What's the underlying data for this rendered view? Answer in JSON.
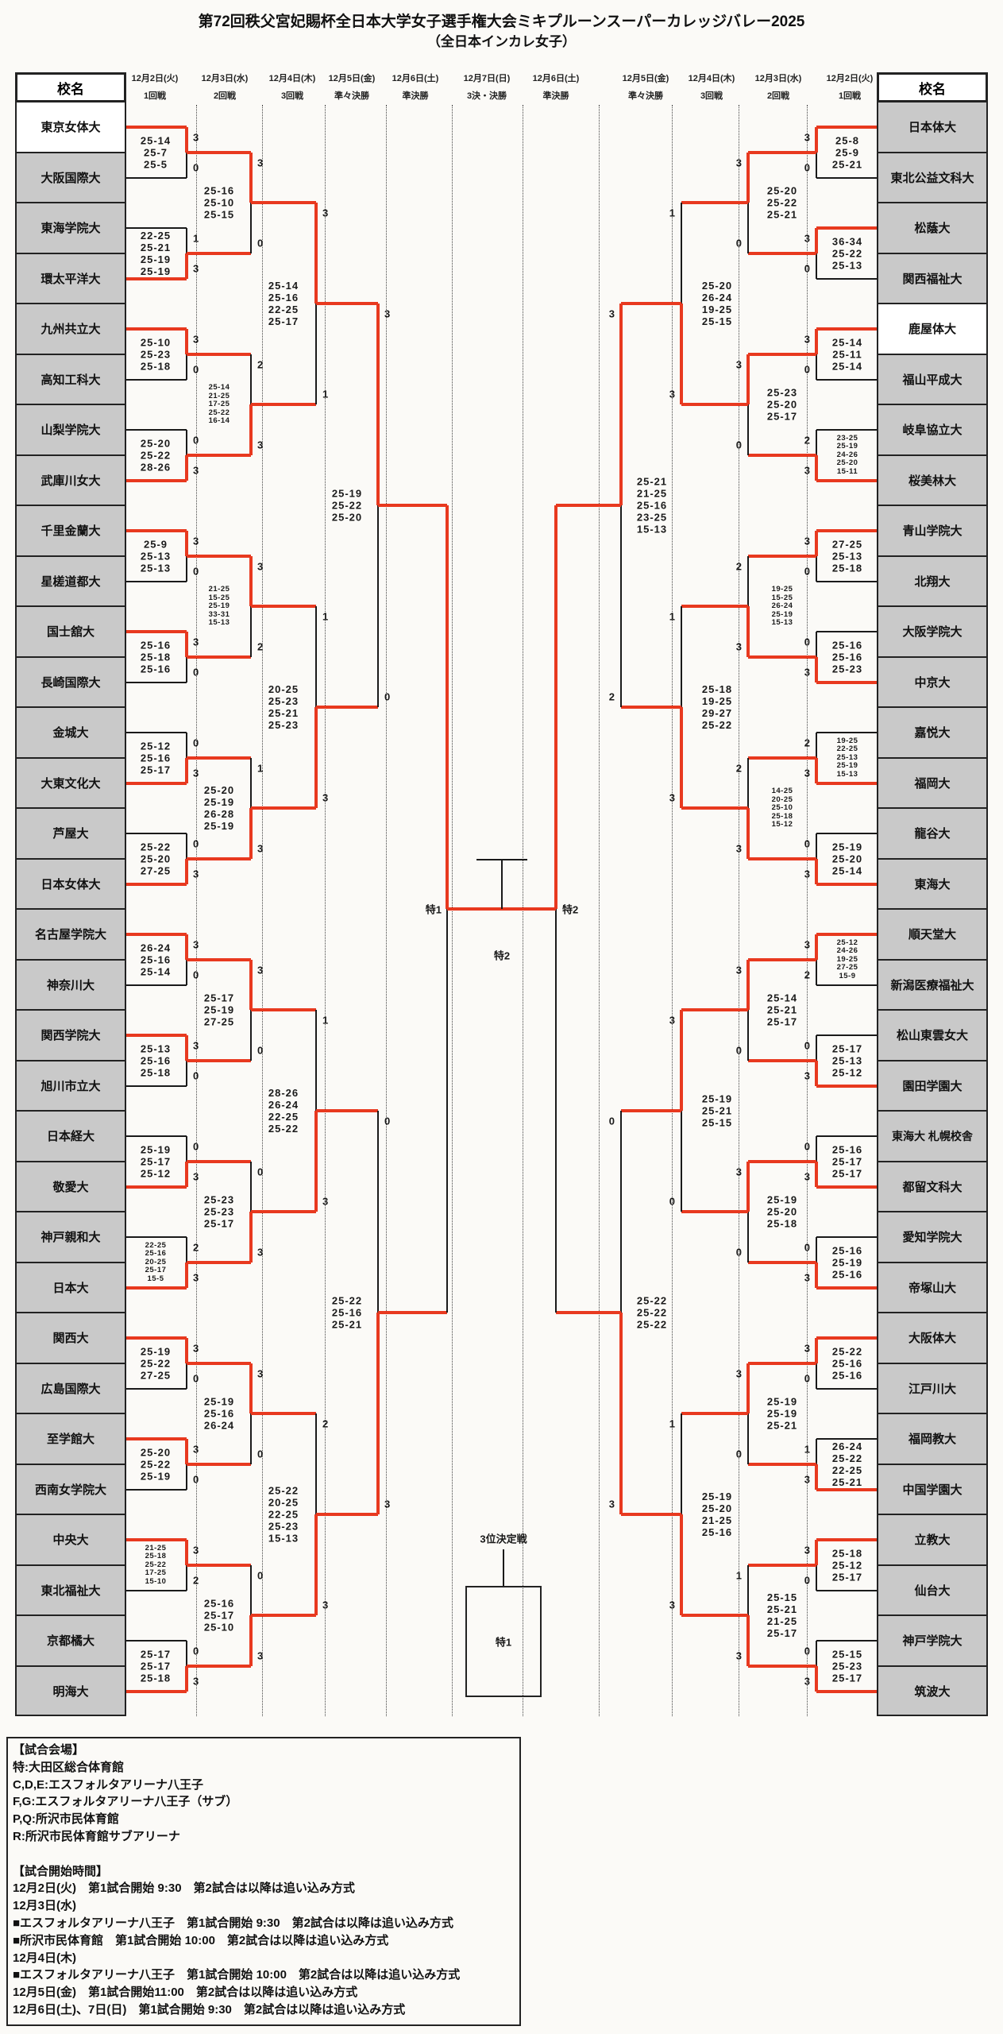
{
  "title": "第72回秩父宮妃賜杯全日本大学女子選手権大会ミキプルーンスーパーカレッジバレー2025",
  "subtitle": "（全日本インカレ女子）",
  "school_header": "校名",
  "columns": [
    {
      "date": "12月2日(火)",
      "round": "1回戦"
    },
    {
      "date": "12月3日(水)",
      "round": "2回戦"
    },
    {
      "date": "12月4日(木)",
      "round": "3回戦"
    },
    {
      "date": "12月5日(金)",
      "round": "準々決勝"
    },
    {
      "date": "12月6日(土)",
      "round": "準決勝"
    },
    {
      "date": "12月7日(日)",
      "round": "3決・決勝"
    },
    {
      "date": "12月6日(土)",
      "round": "準決勝"
    },
    {
      "date": "12月5日(金)",
      "round": "準々決勝"
    },
    {
      "date": "12月4日(木)",
      "round": "3回戦"
    },
    {
      "date": "12月3日(水)",
      "round": "2回戦"
    },
    {
      "date": "12月2日(火)",
      "round": "1回戦"
    }
  ],
  "left_teams": [
    {
      "name": "東京女体大",
      "highlight": true
    },
    {
      "name": "大阪国際大"
    },
    {
      "name": "東海学院大"
    },
    {
      "name": "環太平洋大"
    },
    {
      "name": "九州共立大"
    },
    {
      "name": "高知工科大"
    },
    {
      "name": "山梨学院大"
    },
    {
      "name": "武庫川女大"
    },
    {
      "name": "千里金蘭大"
    },
    {
      "name": "星槎道都大"
    },
    {
      "name": "国士舘大"
    },
    {
      "name": "長崎国際大"
    },
    {
      "name": "金城大"
    },
    {
      "name": "大東文化大"
    },
    {
      "name": "芦屋大"
    },
    {
      "name": "日本女体大"
    },
    {
      "name": "名古屋学院大"
    },
    {
      "name": "神奈川大"
    },
    {
      "name": "関西学院大"
    },
    {
      "name": "旭川市立大"
    },
    {
      "name": "日本経大"
    },
    {
      "name": "敬愛大"
    },
    {
      "name": "神戸親和大"
    },
    {
      "name": "日本大"
    },
    {
      "name": "関西大"
    },
    {
      "name": "広島国際大"
    },
    {
      "name": "至学館大"
    },
    {
      "name": "西南女学院大"
    },
    {
      "name": "中央大"
    },
    {
      "name": "東北福祉大"
    },
    {
      "name": "京都橘大"
    },
    {
      "name": "明海大"
    }
  ],
  "right_teams": [
    {
      "name": "日本体大"
    },
    {
      "name": "東北公益文科大"
    },
    {
      "name": "松蔭大"
    },
    {
      "name": "関西福祉大"
    },
    {
      "name": "鹿屋体大",
      "highlight": true
    },
    {
      "name": "福山平成大"
    },
    {
      "name": "岐阜協立大"
    },
    {
      "name": "桜美林大"
    },
    {
      "name": "青山学院大"
    },
    {
      "name": "北翔大"
    },
    {
      "name": "大阪学院大"
    },
    {
      "name": "中京大"
    },
    {
      "name": "嘉悦大"
    },
    {
      "name": "福岡大"
    },
    {
      "name": "龍谷大"
    },
    {
      "name": "東海大"
    },
    {
      "name": "順天堂大"
    },
    {
      "name": "新潟医療福祉大"
    },
    {
      "name": "松山東雲女大"
    },
    {
      "name": "園田学園大"
    },
    {
      "name": "東海大\n札幌校舎"
    },
    {
      "name": "都留文科大"
    },
    {
      "name": "愛知学院大"
    },
    {
      "name": "帝塚山大"
    },
    {
      "name": "大阪体大"
    },
    {
      "name": "江戸川大"
    },
    {
      "name": "福岡教大"
    },
    {
      "name": "中国学園大"
    },
    {
      "name": "立教大"
    },
    {
      "name": "仙台大"
    },
    {
      "name": "神戸学院大"
    },
    {
      "name": "筑波大"
    }
  ],
  "bracket": {
    "left": {
      "r1": [
        {
          "s": [
            "25-14",
            "25-7",
            "25-5"
          ],
          "n": [
            3,
            0
          ],
          "w": "t"
        },
        {
          "s": [
            "22-25",
            "25-21",
            "25-19",
            "25-19"
          ],
          "n": [
            1,
            3
          ],
          "w": "b"
        },
        {
          "s": [
            "25-10",
            "25-23",
            "25-18"
          ],
          "n": [
            3,
            0
          ],
          "w": "t"
        },
        {
          "s": [
            "25-20",
            "25-22",
            "28-26"
          ],
          "n": [
            0,
            3
          ],
          "w": "b"
        },
        {
          "s": [
            "25-9",
            "25-13",
            "25-13"
          ],
          "n": [
            3,
            0
          ],
          "w": "t"
        },
        {
          "s": [
            "25-16",
            "25-18",
            "25-16"
          ],
          "n": [
            3,
            0
          ],
          "w": "t"
        },
        {
          "s": [
            "25-12",
            "25-16",
            "25-17"
          ],
          "n": [
            0,
            3
          ],
          "w": "b"
        },
        {
          "s": [
            "25-22",
            "25-20",
            "27-25"
          ],
          "n": [
            0,
            3
          ],
          "w": "b"
        },
        {
          "s": [
            "26-24",
            "25-16",
            "25-14"
          ],
          "n": [
            3,
            0
          ],
          "w": "t"
        },
        {
          "s": [
            "25-13",
            "25-16",
            "25-18"
          ],
          "n": [
            3,
            0
          ],
          "w": "t"
        },
        {
          "s": [
            "25-19",
            "25-17",
            "25-12"
          ],
          "n": [
            0,
            3
          ],
          "w": "b"
        },
        {
          "s": [
            "22-25",
            "25-16",
            "20-25",
            "25-17",
            "15-5"
          ],
          "n": [
            2,
            3
          ],
          "w": "b",
          "small": true
        },
        {
          "s": [
            "25-19",
            "25-22",
            "27-25"
          ],
          "n": [
            3,
            0
          ],
          "w": "t"
        },
        {
          "s": [
            "25-20",
            "25-22",
            "25-19"
          ],
          "n": [
            3,
            0
          ],
          "w": "t"
        },
        {
          "s": [
            "21-25",
            "25-18",
            "25-22",
            "17-25",
            "15-10"
          ],
          "n": [
            3,
            2
          ],
          "w": "t",
          "small": true
        },
        {
          "s": [
            "25-17",
            "25-17",
            "25-18"
          ],
          "n": [
            0,
            3
          ],
          "w": "b"
        }
      ],
      "r2": [
        {
          "s": [
            "25-16",
            "25-10",
            "25-15"
          ],
          "n": [
            3,
            0
          ],
          "w": "t"
        },
        {
          "s": [
            "25-14",
            "21-25",
            "17-25",
            "25-22",
            "16-14"
          ],
          "n": [
            2,
            3
          ],
          "w": "b",
          "small": true
        },
        {
          "s": [
            "21-25",
            "15-25",
            "25-19",
            "33-31",
            "15-13"
          ],
          "n": [
            3,
            2
          ],
          "w": "t",
          "small": true
        },
        {
          "s": [
            "25-20",
            "25-19",
            "26-28",
            "25-19"
          ],
          "n": [
            1,
            3
          ],
          "w": "b"
        },
        {
          "s": [
            "25-17",
            "25-19",
            "27-25"
          ],
          "n": [
            3,
            0
          ],
          "w": "t"
        },
        {
          "s": [
            "25-23",
            "25-23",
            "25-17"
          ],
          "n": [
            0,
            3
          ],
          "w": "b"
        },
        {
          "s": [
            "25-19",
            "25-16",
            "26-24"
          ],
          "n": [
            3,
            0
          ],
          "w": "t"
        },
        {
          "s": [
            "25-16",
            "25-17",
            "25-10"
          ],
          "n": [
            0,
            3
          ],
          "w": "b"
        }
      ],
      "r3": [
        {
          "s": [
            "25-14",
            "25-16",
            "22-25",
            "25-17"
          ],
          "n": [
            3,
            1
          ],
          "w": "t"
        },
        {
          "s": [
            "20-25",
            "25-23",
            "25-21",
            "25-23"
          ],
          "n": [
            1,
            3
          ],
          "w": "b"
        },
        {
          "s": [
            "28-26",
            "26-24",
            "22-25",
            "25-22"
          ],
          "n": [
            1,
            3
          ],
          "w": "b"
        },
        {
          "s": [
            "25-22",
            "20-25",
            "22-25",
            "25-23",
            "15-13"
          ],
          "n": [
            2,
            3
          ],
          "w": "b"
        }
      ],
      "qf": [
        {
          "s": [
            "25-19",
            "25-22",
            "25-20"
          ],
          "n": [
            3,
            0
          ],
          "w": "t"
        },
        {
          "s": [
            "25-22",
            "25-16",
            "25-21"
          ],
          "n": [
            0,
            3
          ],
          "w": "b"
        }
      ],
      "sf": {
        "w": "t"
      }
    },
    "right": {
      "r1": [
        {
          "s": [
            "25-8",
            "25-9",
            "25-21"
          ],
          "n": [
            3,
            0
          ],
          "w": "t"
        },
        {
          "s": [
            "36-34",
            "25-22",
            "25-13"
          ],
          "n": [
            3,
            0
          ],
          "w": "t"
        },
        {
          "s": [
            "25-14",
            "25-11",
            "25-14"
          ],
          "n": [
            3,
            0
          ],
          "w": "t"
        },
        {
          "s": [
            "23-25",
            "25-19",
            "24-26",
            "25-20",
            "15-11"
          ],
          "n": [
            2,
            3
          ],
          "w": "b",
          "small": true
        },
        {
          "s": [
            "27-25",
            "25-13",
            "25-18"
          ],
          "n": [
            3,
            0
          ],
          "w": "t"
        },
        {
          "s": [
            "25-16",
            "25-16",
            "25-23"
          ],
          "n": [
            0,
            3
          ],
          "w": "b"
        },
        {
          "s": [
            "19-25",
            "22-25",
            "25-13",
            "25-19",
            "15-13"
          ],
          "n": [
            2,
            3
          ],
          "w": "b",
          "small": true
        },
        {
          "s": [
            "25-19",
            "25-20",
            "25-14"
          ],
          "n": [
            0,
            3
          ],
          "w": "b"
        },
        {
          "s": [
            "25-12",
            "24-26",
            "19-25",
            "27-25",
            "15-9"
          ],
          "n": [
            3,
            2
          ],
          "w": "t",
          "small": true
        },
        {
          "s": [
            "25-17",
            "25-13",
            "25-12"
          ],
          "n": [
            0,
            3
          ],
          "w": "b"
        },
        {
          "s": [
            "25-16",
            "25-17",
            "25-17"
          ],
          "n": [
            0,
            3
          ],
          "w": "b"
        },
        {
          "s": [
            "25-16",
            "25-19",
            "25-16"
          ],
          "n": [
            0,
            3
          ],
          "w": "b"
        },
        {
          "s": [
            "25-22",
            "25-16",
            "25-16"
          ],
          "n": [
            3,
            0
          ],
          "w": "t"
        },
        {
          "s": [
            "26-24",
            "25-22",
            "22-25",
            "25-21"
          ],
          "n": [
            1,
            3
          ],
          "w": "b"
        },
        {
          "s": [
            "25-18",
            "25-12",
            "25-17"
          ],
          "n": [
            3,
            0
          ],
          "w": "t"
        },
        {
          "s": [
            "25-15",
            "25-23",
            "25-17"
          ],
          "n": [
            0,
            3
          ],
          "w": "b"
        }
      ],
      "r2": [
        {
          "s": [
            "25-20",
            "25-22",
            "25-21"
          ],
          "n": [
            3,
            0
          ],
          "w": "t"
        },
        {
          "s": [
            "25-23",
            "25-20",
            "25-17"
          ],
          "n": [
            3,
            0
          ],
          "w": "t"
        },
        {
          "s": [
            "19-25",
            "15-25",
            "26-24",
            "25-19",
            "15-13"
          ],
          "n": [
            2,
            3
          ],
          "w": "b",
          "small": true
        },
        {
          "s": [
            "14-25",
            "20-25",
            "25-10",
            "25-18",
            "15-12"
          ],
          "n": [
            2,
            3
          ],
          "w": "b",
          "small": true
        },
        {
          "s": [
            "25-14",
            "25-21",
            "25-17"
          ],
          "n": [
            3,
            0
          ],
          "w": "t"
        },
        {
          "s": [
            "25-19",
            "25-20",
            "25-18"
          ],
          "n": [
            3,
            0
          ],
          "w": "t"
        },
        {
          "s": [
            "25-19",
            "25-19",
            "25-21"
          ],
          "n": [
            3,
            0
          ],
          "w": "t"
        },
        {
          "s": [
            "25-15",
            "25-21",
            "21-25",
            "25-17"
          ],
          "n": [
            1,
            3
          ],
          "w": "b"
        }
      ],
      "r3": [
        {
          "s": [
            "25-20",
            "26-24",
            "19-25",
            "25-15"
          ],
          "n": [
            1,
            3
          ],
          "w": "b"
        },
        {
          "s": [
            "25-18",
            "19-25",
            "29-27",
            "25-22"
          ],
          "n": [
            1,
            3
          ],
          "w": "b"
        },
        {
          "s": [
            "25-19",
            "25-21",
            "25-15"
          ],
          "n": [
            3,
            0
          ],
          "w": "t"
        },
        {
          "s": [
            "25-19",
            "25-20",
            "21-25",
            "25-16"
          ],
          "n": [
            1,
            3
          ],
          "w": "b"
        }
      ],
      "qf": [
        {
          "s": [
            "25-21",
            "21-25",
            "25-16",
            "23-25",
            "15-13"
          ],
          "n": [
            3,
            2
          ],
          "w": "t"
        },
        {
          "s": [
            "25-22",
            "25-22",
            "25-22"
          ],
          "n": [
            0,
            3
          ],
          "w": "b"
        }
      ],
      "sf": {
        "w": "t"
      }
    }
  },
  "center": {
    "sf1_venue": "特1",
    "sf2_venue": "特2",
    "final_venue": "特2",
    "third_place_label": "3位決定戦",
    "third_place_venue": "特1"
  },
  "notes_lines": [
    "【試合会場】",
    "特:大田区総合体育館",
    "C,D,E:エスフォルタアリーナ八王子",
    "F,G:エスフォルタアリーナ八王子（サブ）",
    "P,Q:所沢市民体育館",
    "R:所沢市民体育館サブアリーナ",
    "",
    "【試合開始時間】",
    "12月2日(火)　第1試合開始 9:30　第2試合は以降は追い込み方式",
    "12月3日(水)",
    "■エスフォルタアリーナ八王子　第1試合開始 9:30　第2試合は以降は追い込み方式",
    "■所沢市民体育館　第1試合開始 10:00　第2試合は以降は追い込み方式",
    "12月4日(木)",
    "■エスフォルタアリーナ八王子　第1試合開始 10:00　第2試合は以降は追い込み方式",
    "12月5日(金)　第1試合開始11:00　第2試合は以降は追い込み方式",
    "12月6日(土)、7日(日)　第1試合開始 9:30　第2試合は以降は追い込み方式"
  ],
  "colors": {
    "winner_path": "#e8391f",
    "line": "#1a1a1a",
    "cell_bg": "#c9c9c9",
    "highlight_bg": "#ffffff"
  }
}
